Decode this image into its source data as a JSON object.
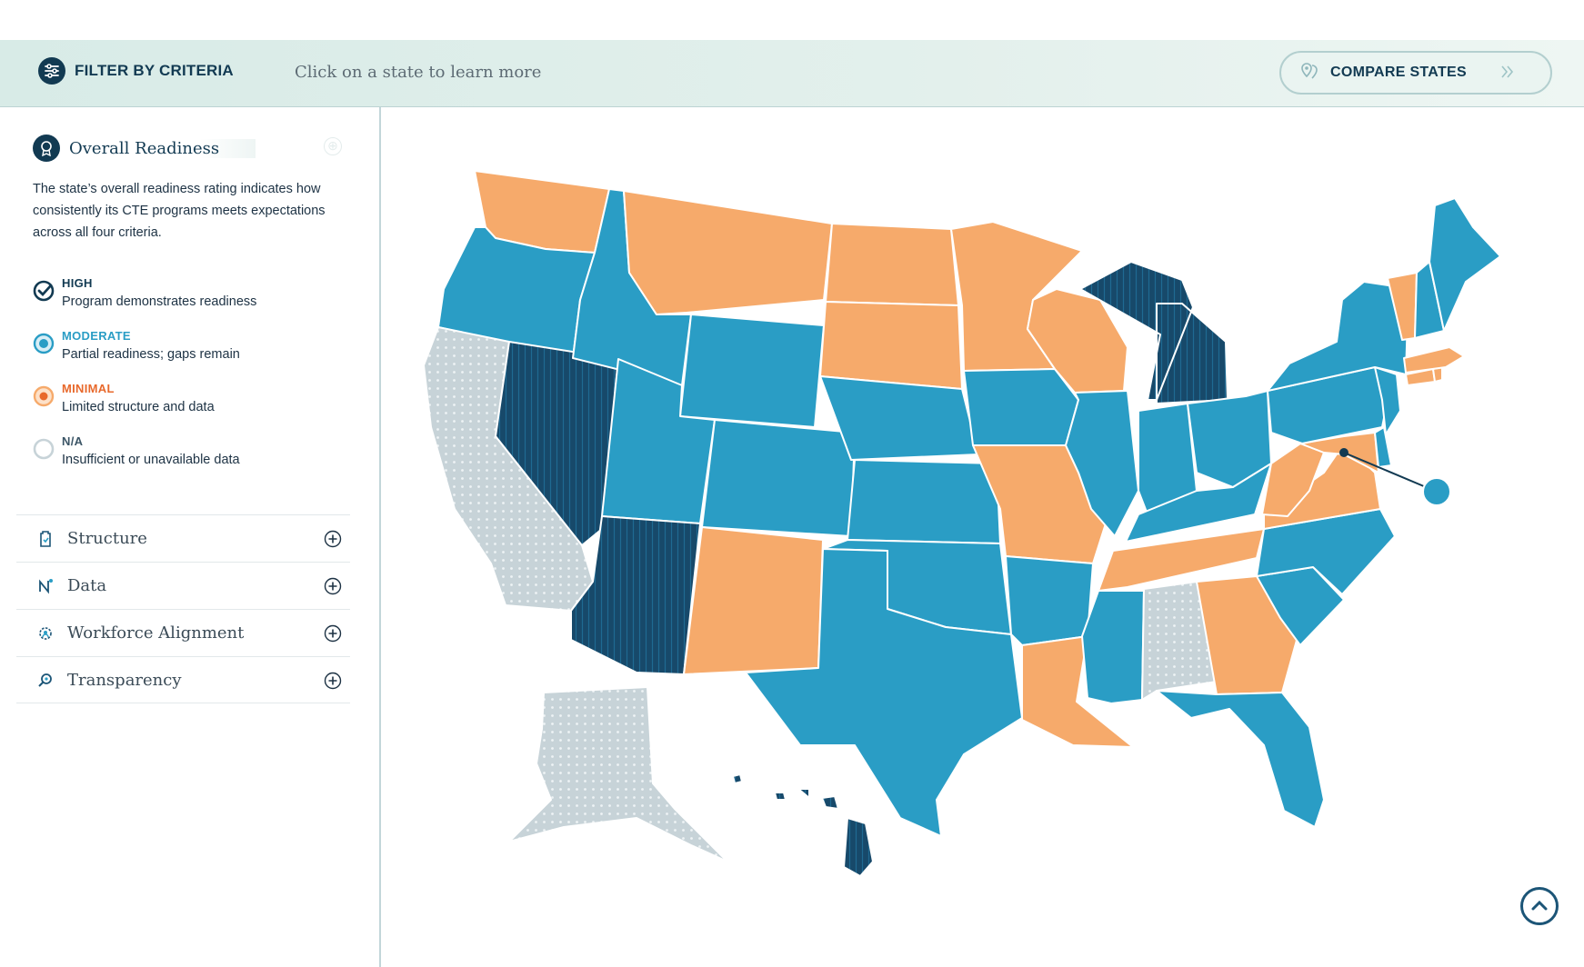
{
  "toolbar": {
    "filter_label": "FILTER BY CRITERIA",
    "hint": "Click on a state to learn more",
    "compare_label": "COMPARE STATES"
  },
  "sidebar": {
    "overall": {
      "title": "Overall Readiness",
      "description": "The state’s overall readiness rating indicates how consistently its CTE programs meets expectations across all four criteria."
    },
    "legend": [
      {
        "key": "high",
        "name": "HIGH",
        "desc": "Program demonstrates readiness",
        "color": "#123a52"
      },
      {
        "key": "moderate",
        "name": "MODERATE",
        "desc": "Partial readiness; gaps remain",
        "color": "#2a9dc5"
      },
      {
        "key": "minimal",
        "name": "MINIMAL",
        "desc": "Limited structure and data",
        "color": "#e8692c"
      },
      {
        "key": "na",
        "name": "N/A",
        "desc": "Insufficient or unavailable data",
        "color": "#a9bcc4"
      }
    ],
    "criteria": [
      {
        "label": "Structure",
        "icon": "clipboard-icon"
      },
      {
        "label": "Data",
        "icon": "nodes-icon"
      },
      {
        "label": "Workforce Alignment",
        "icon": "gear-person-icon"
      },
      {
        "label": "Transparency",
        "icon": "magnifier-icon"
      }
    ]
  },
  "map": {
    "colors": {
      "high": "#17496a",
      "moderate": "#2a9dc5",
      "minimal": "#f6aa6b",
      "na": "#c7d3d8"
    },
    "ratings": {
      "WA": "minimal",
      "OR": "moderate",
      "CA": "na",
      "NV": "high",
      "ID": "moderate",
      "MT": "minimal",
      "WY": "moderate",
      "UT": "moderate",
      "AZ": "high",
      "CO": "moderate",
      "NM": "minimal",
      "ND": "minimal",
      "SD": "minimal",
      "NE": "moderate",
      "KS": "moderate",
      "OK": "moderate",
      "TX": "moderate",
      "MN": "minimal",
      "IA": "moderate",
      "MO": "minimal",
      "AR": "moderate",
      "LA": "minimal",
      "WI": "minimal",
      "IL": "moderate",
      "MI": "high",
      "IN": "moderate",
      "OH": "moderate",
      "KY": "moderate",
      "TN": "minimal",
      "MS": "moderate",
      "AL": "na",
      "GA": "minimal",
      "FL": "moderate",
      "SC": "moderate",
      "NC": "moderate",
      "VA": "minimal",
      "WV": "minimal",
      "MD": "minimal",
      "DE": "moderate",
      "DC": "moderate",
      "PA": "moderate",
      "NJ": "moderate",
      "NY": "moderate",
      "CT": "minimal",
      "RI": "minimal",
      "MA": "minimal",
      "VT": "minimal",
      "NH": "moderate",
      "ME": "moderate",
      "AK": "na",
      "HI": "high"
    }
  }
}
